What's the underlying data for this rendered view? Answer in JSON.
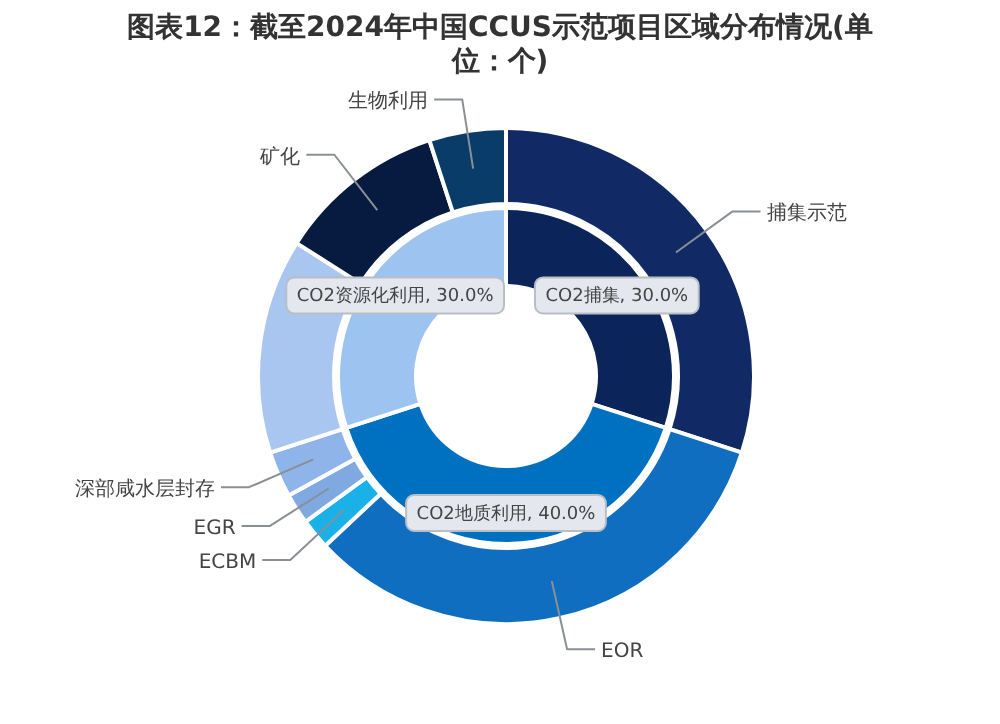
{
  "chart_data": [
    {
      "type": "donut",
      "title": "图表12：截至2024年中国CCUS示范项目区域分布情况(单位：个)",
      "categories": [
        "CO2捕集",
        "CO2地质利用",
        "CO2资源化利用"
      ],
      "values": [
        30.0,
        40.0,
        30.0
      ],
      "value_labels": [
        "30.0%",
        "40.0%",
        "30.0%"
      ],
      "colors": [
        "#0b2459",
        "#0070c0",
        "#9dc3f0"
      ],
      "data_labels": true
    },
    {
      "type": "donut",
      "categories": [
        "捕集示范",
        "EOR",
        "ECBM",
        "EGR",
        "深部咸水层封存",
        null,
        "矿化",
        "生物利用"
      ],
      "values": [
        30,
        33,
        2,
        2,
        3,
        14,
        11,
        5
      ],
      "colors": [
        "#112a66",
        "#0f6ebf",
        "#1ab0e8",
        "#7fa9e0",
        "#8fb4ea",
        "#a9c6f0",
        "#071a40",
        "#0a3c6a"
      ]
    }
  ]
}
